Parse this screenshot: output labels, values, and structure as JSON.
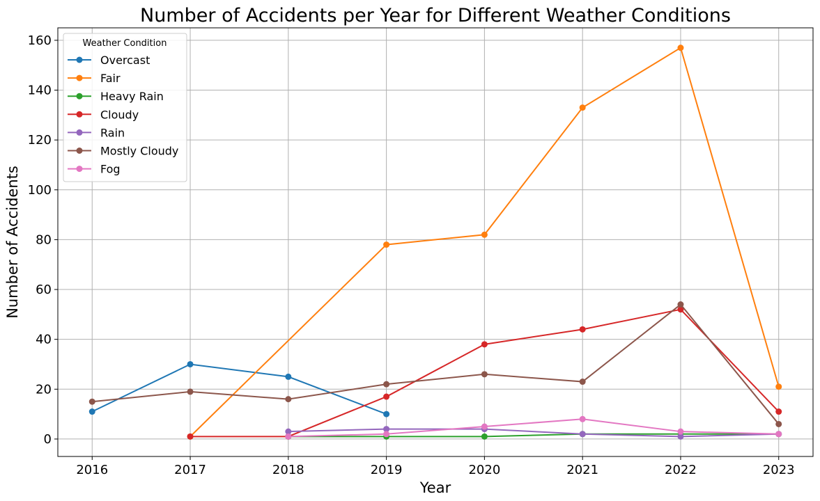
{
  "chart_data": {
    "type": "line",
    "title": "Number of Accidents per Year for Different Weather Conditions",
    "xlabel": "Year",
    "ylabel": "Number of Accidents",
    "x": [
      2016,
      2017,
      2018,
      2019,
      2020,
      2021,
      2022,
      2023
    ],
    "xlim": [
      2015.65,
      2023.35
    ],
    "ylim": [
      -7,
      165
    ],
    "yticks": [
      0,
      20,
      40,
      60,
      80,
      100,
      120,
      140,
      160
    ],
    "grid": true,
    "legend": {
      "title": "Weather Condition",
      "placement": "top-left"
    },
    "series": [
      {
        "name": "Overcast",
        "color": "#1f77b4",
        "points": [
          [
            2016,
            11
          ],
          [
            2017,
            30
          ],
          [
            2018,
            25
          ],
          [
            2019,
            10
          ]
        ]
      },
      {
        "name": "Fair",
        "color": "#ff7f0e",
        "points": [
          [
            2017,
            1
          ],
          [
            2019,
            78
          ],
          [
            2020,
            82
          ],
          [
            2021,
            133
          ],
          [
            2022,
            157
          ],
          [
            2023,
            21
          ]
        ]
      },
      {
        "name": "Heavy Rain",
        "color": "#2ca02c",
        "points": [
          [
            2018,
            1
          ],
          [
            2019,
            1
          ],
          [
            2020,
            1
          ],
          [
            2021,
            2
          ],
          [
            2023,
            2
          ]
        ]
      },
      {
        "name": "Cloudy",
        "color": "#d62728",
        "points": [
          [
            2017,
            1
          ],
          [
            2018,
            1
          ],
          [
            2019,
            17
          ],
          [
            2020,
            38
          ],
          [
            2021,
            44
          ],
          [
            2022,
            52
          ],
          [
            2023,
            11
          ]
        ]
      },
      {
        "name": "Rain",
        "color": "#9467bd",
        "points": [
          [
            2018,
            3
          ],
          [
            2019,
            4
          ],
          [
            2020,
            4
          ],
          [
            2021,
            2
          ],
          [
            2022,
            1
          ],
          [
            2023,
            2
          ]
        ]
      },
      {
        "name": "Mostly Cloudy",
        "color": "#8c564b",
        "points": [
          [
            2016,
            15
          ],
          [
            2017,
            19
          ],
          [
            2018,
            16
          ],
          [
            2019,
            22
          ],
          [
            2020,
            26
          ],
          [
            2021,
            23
          ],
          [
            2022,
            54
          ],
          [
            2023,
            6
          ]
        ]
      },
      {
        "name": "Fog",
        "color": "#e377c2",
        "points": [
          [
            2018,
            1
          ],
          [
            2019,
            2
          ],
          [
            2020,
            5
          ],
          [
            2021,
            8
          ],
          [
            2022,
            3
          ],
          [
            2023,
            2
          ]
        ]
      }
    ]
  }
}
